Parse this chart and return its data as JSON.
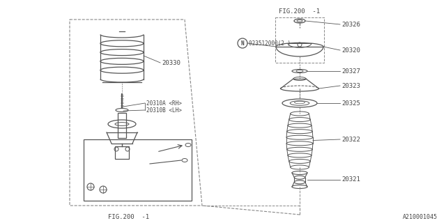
{
  "background_color": "#ffffff",
  "image_ref": "A210001045",
  "fig_label_bottom": "FIG.200  -1",
  "fig_label_top_right": "FIG.200  -1",
  "line_color": "#555555",
  "text_color": "#444444",
  "dashed_line_color": "#888888"
}
